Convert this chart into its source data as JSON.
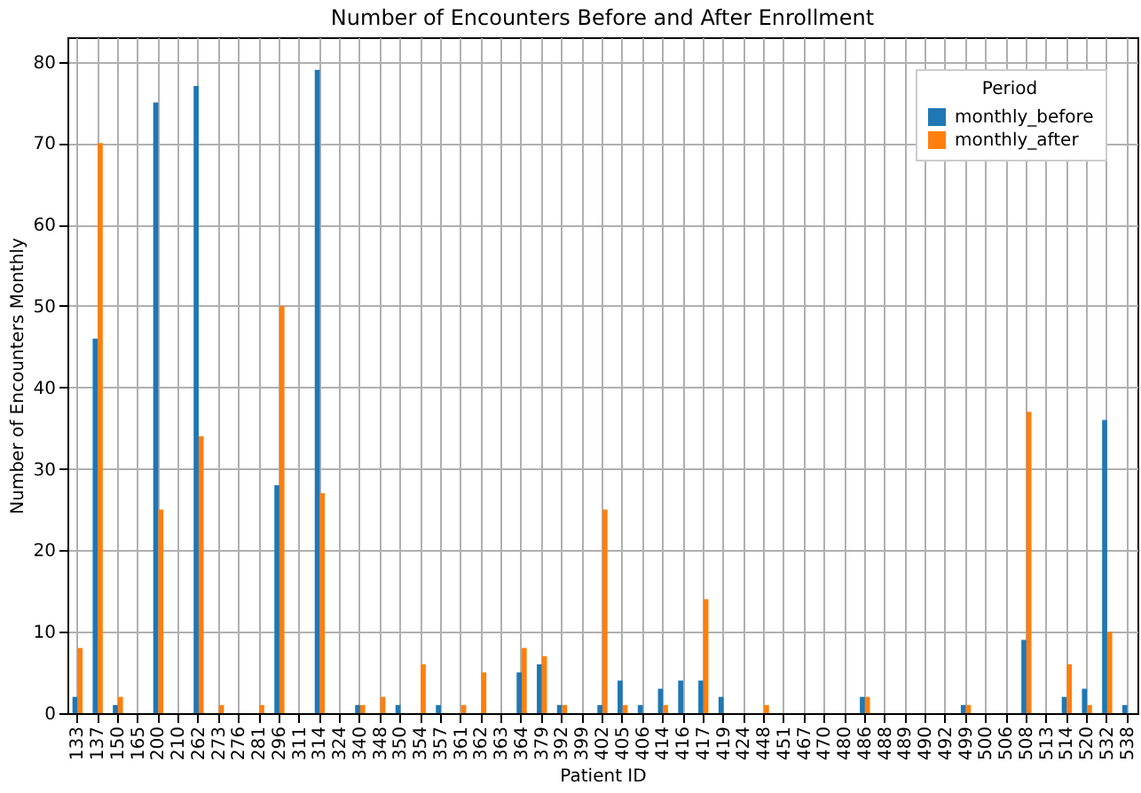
{
  "chart_data": {
    "type": "bar",
    "title": "Number of Encounters Before and After Enrollment",
    "xlabel": "Patient ID",
    "ylabel": "Number of Encounters Monthly",
    "legend_title": "Period",
    "categories": [
      "133",
      "137",
      "150",
      "165",
      "200",
      "210",
      "262",
      "273",
      "276",
      "281",
      "296",
      "311",
      "314",
      "324",
      "340",
      "348",
      "350",
      "354",
      "357",
      "361",
      "362",
      "363",
      "364",
      "379",
      "392",
      "399",
      "402",
      "405",
      "406",
      "414",
      "416",
      "417",
      "419",
      "424",
      "448",
      "451",
      "467",
      "470",
      "480",
      "486",
      "488",
      "489",
      "490",
      "492",
      "499",
      "500",
      "506",
      "508",
      "513",
      "514",
      "520",
      "532",
      "538"
    ],
    "series": [
      {
        "name": "monthly_before",
        "color": "#1f77b4",
        "values": [
          2,
          46,
          1,
          0,
          75,
          0,
          77,
          0,
          0,
          0,
          28,
          0,
          79,
          0,
          1,
          0,
          1,
          0,
          1,
          0,
          0,
          0,
          5,
          6,
          1,
          0,
          1,
          4,
          1,
          3,
          4,
          4,
          2,
          0,
          0,
          0,
          0,
          0,
          0,
          2,
          0,
          0,
          0,
          0,
          1,
          0,
          0,
          9,
          0,
          2,
          3,
          36,
          1
        ]
      },
      {
        "name": "monthly_after",
        "color": "#ff7f0e",
        "values": [
          8,
          70,
          2,
          0,
          25,
          0,
          34,
          1,
          0,
          1,
          50,
          0,
          27,
          0,
          1,
          2,
          0,
          6,
          0,
          1,
          5,
          0,
          8,
          7,
          1,
          0,
          25,
          1,
          0,
          1,
          0,
          14,
          0,
          0,
          1,
          0,
          0,
          0,
          0,
          2,
          0,
          0,
          0,
          0,
          1,
          0,
          0,
          37,
          0,
          6,
          1,
          10,
          0
        ]
      }
    ],
    "ylim": [
      0,
      83
    ],
    "yticks": [
      0,
      10,
      20,
      30,
      40,
      50,
      60,
      70,
      80
    ],
    "grid": true,
    "legend": "top right"
  }
}
